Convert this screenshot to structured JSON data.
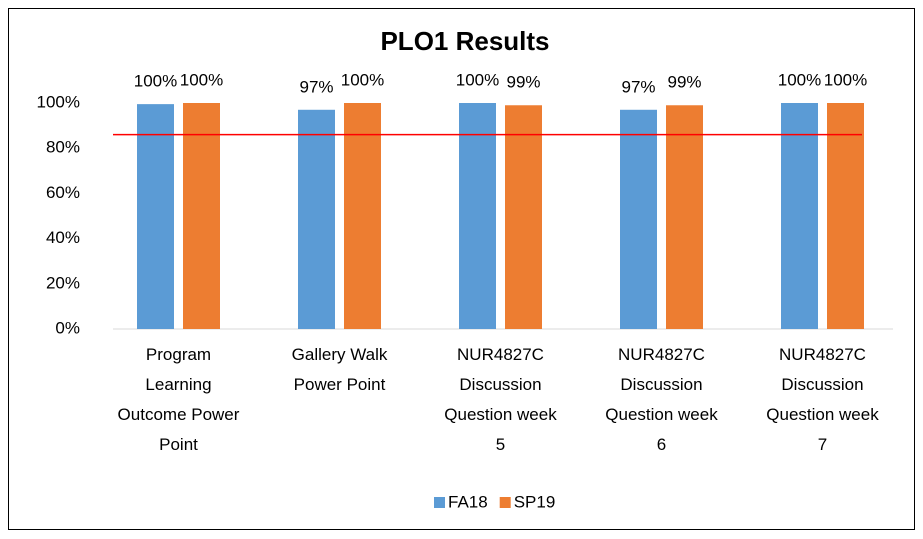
{
  "chart_data": {
    "type": "bar",
    "title": "PLO1 Results",
    "categories": [
      "Program Learning Outcome Power Point",
      "Gallery Walk Power Point",
      "NUR4827C Discussion Question week 5",
      "NUR4827C Discussion Question week 6",
      "NUR4827C Discussion Question week 7"
    ],
    "series": [
      {
        "name": "FA18",
        "color": "#5b9bd5",
        "values": [
          99.5,
          97,
          100,
          97,
          100
        ],
        "value_labels": [
          "100%",
          "97%",
          "100%",
          "97%",
          "100%"
        ]
      },
      {
        "name": "SP19",
        "color": "#ed7d31",
        "values": [
          100,
          100,
          99,
          99,
          100
        ],
        "value_labels": [
          "100%",
          "100%",
          "99%",
          "99%",
          "100%"
        ]
      }
    ],
    "ylim": [
      0,
      100
    ],
    "yticks": [
      {
        "value": 0,
        "label": "0%"
      },
      {
        "value": 20,
        "label": "20%"
      },
      {
        "value": 40,
        "label": "40%"
      },
      {
        "value": 60,
        "label": "60%"
      },
      {
        "value": 80,
        "label": "80%"
      },
      {
        "value": 100,
        "label": "100%"
      }
    ],
    "grid": false,
    "target_line": {
      "value": 86,
      "color": "#ff0000"
    },
    "legend": "bottom"
  }
}
